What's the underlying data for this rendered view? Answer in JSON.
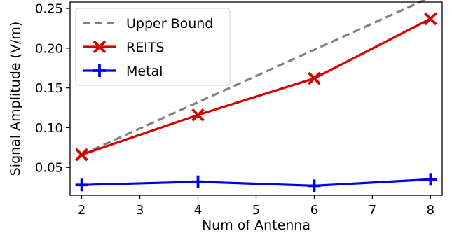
{
  "chart_data": {
    "type": "line",
    "xlabel": "Num of Antenna",
    "ylabel": "Signal Amplitude (V/m)",
    "xlim": [
      1.8,
      8.2
    ],
    "ylim": [
      0.015,
      0.258
    ],
    "xticks": [
      2,
      3,
      4,
      5,
      6,
      7,
      8
    ],
    "yticks": [
      0.05,
      0.1,
      0.15,
      0.2,
      0.25
    ],
    "ytick_labels": [
      "0.05",
      "0.10",
      "0.15",
      "0.20",
      "0.25"
    ],
    "grid": false,
    "legend_position": "top-left",
    "series": [
      {
        "name": "Upper Bound",
        "color": "#808080",
        "style": "dashed",
        "marker": "none",
        "x": [
          2,
          8
        ],
        "y": [
          0.066,
          0.264
        ]
      },
      {
        "name": "REITS",
        "color": "#d40000",
        "style": "solid",
        "marker": "x",
        "x": [
          2,
          4,
          6,
          8
        ],
        "y": [
          0.066,
          0.116,
          0.162,
          0.237
        ]
      },
      {
        "name": "Metal",
        "color": "#0000e6",
        "style": "solid",
        "marker": "plus",
        "x": [
          2,
          4,
          6,
          8
        ],
        "y": [
          0.028,
          0.032,
          0.027,
          0.035
        ]
      }
    ]
  }
}
